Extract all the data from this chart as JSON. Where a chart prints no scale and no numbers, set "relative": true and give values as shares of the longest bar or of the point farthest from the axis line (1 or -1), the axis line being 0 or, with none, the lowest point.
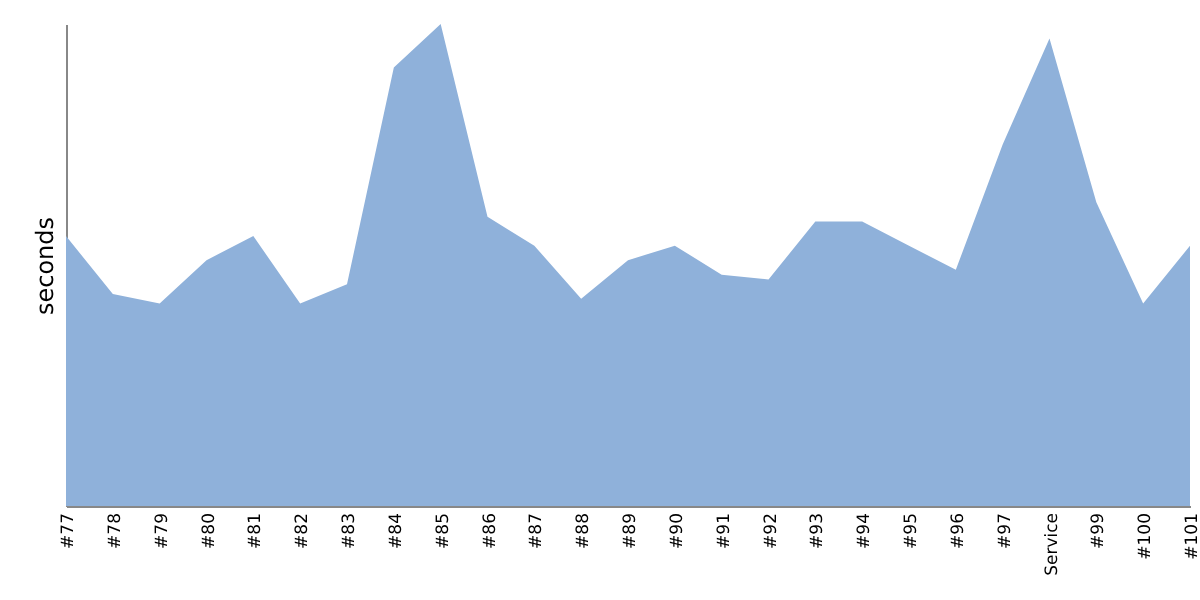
{
  "chart_data": {
    "type": "area",
    "ylabel": "seconds",
    "relative": true,
    "categories": [
      "#77",
      "#78",
      "#79",
      "#80",
      "#81",
      "#82",
      "#83",
      "#84",
      "#85",
      "#86",
      "#87",
      "#88",
      "#89",
      "#90",
      "#91",
      "#92",
      "#93",
      "#94",
      "#95",
      "#96",
      "#97",
      "Service",
      "#99",
      "#100",
      "#101"
    ],
    "series": [
      {
        "color": "#8fb1da",
        "values": [
          0.56,
          0.44,
          0.42,
          0.51,
          0.56,
          0.42,
          0.46,
          0.91,
          1,
          0.6,
          0.54,
          0.43,
          0.51,
          0.54,
          0.48,
          0.47,
          0.59,
          0.59,
          0.54,
          0.49,
          0.75,
          0.97,
          0.63,
          0.42,
          0.54
        ]
      }
    ]
  }
}
